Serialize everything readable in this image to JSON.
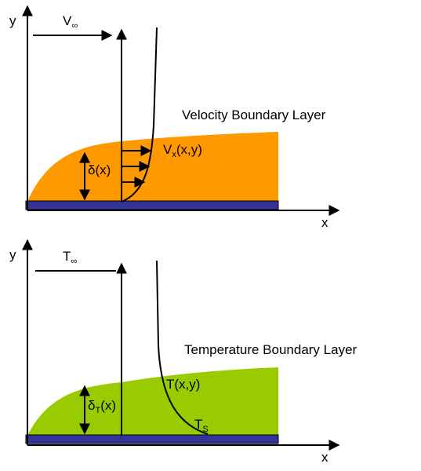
{
  "velocity_panel": {
    "y_label": "y",
    "x_label": "x",
    "freestream": {
      "main": "V",
      "sub": "∞"
    },
    "title": "Velocity Boundary Layer",
    "thickness": "δ(x)",
    "profile": {
      "main": "V",
      "sub": "x",
      "rest": "(x,y)"
    }
  },
  "temperature_panel": {
    "y_label": "y",
    "x_label": "x",
    "freestream": {
      "main": "T",
      "sub": "∞"
    },
    "title": "Temperature Boundary Layer",
    "thickness": {
      "main": "δ",
      "sub": "T",
      "rest": "(x)"
    },
    "profile": "T(x,y)",
    "surface": {
      "main": "T",
      "sub": "S"
    }
  }
}
